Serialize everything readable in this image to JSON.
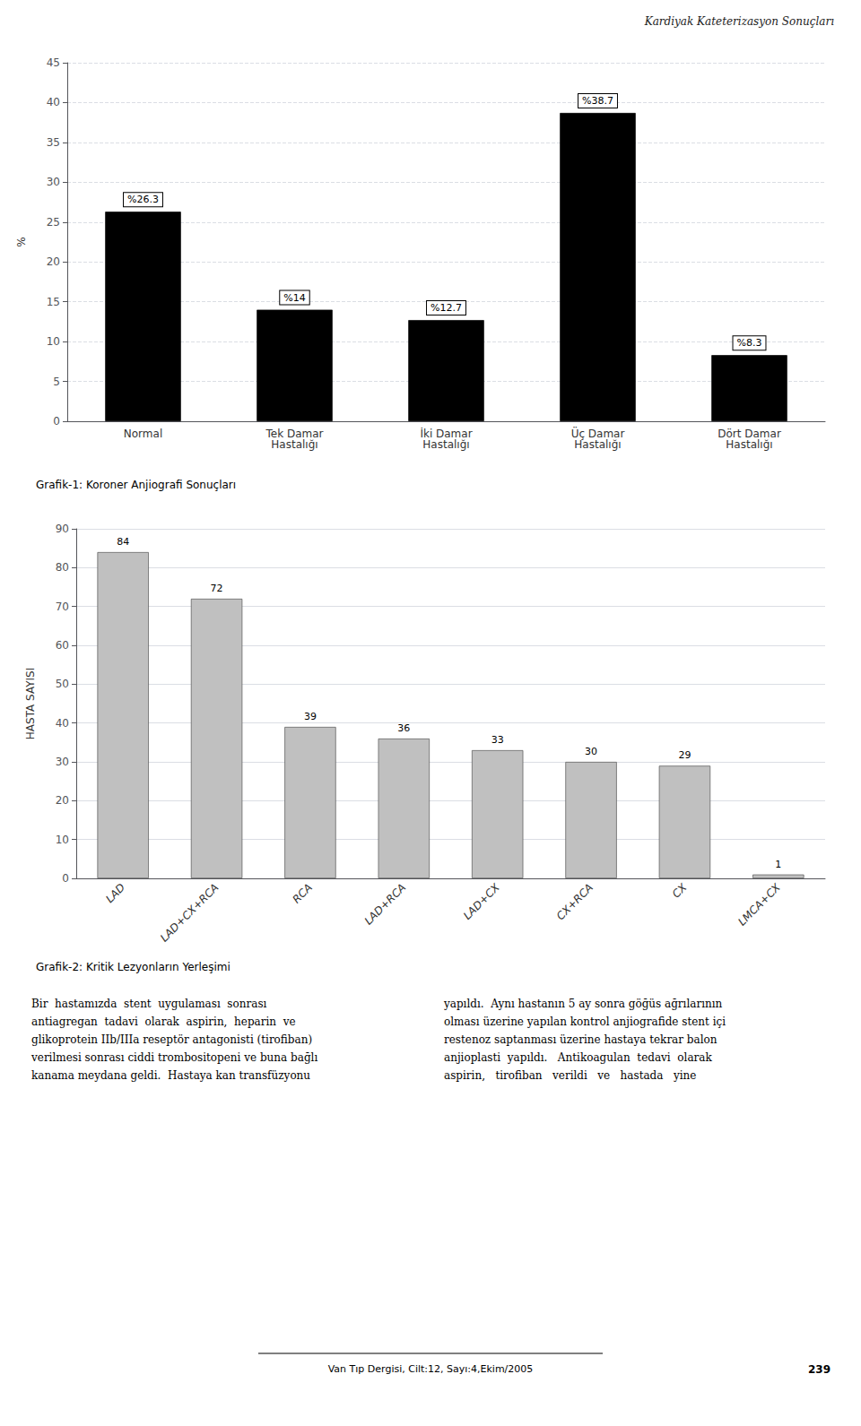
{
  "chart_data": [
    {
      "type": "bar",
      "title": "Grafik-1: Koroner Anjiografi Sonuçları",
      "ylabel": "%",
      "categories": [
        "Normal",
        "Tek Damar\nHastalığı",
        "İki Damar\nHastalığı",
        "Üç Damar\nHastalığı",
        "Dört Damar\nHastalığı"
      ],
      "values": [
        26.3,
        14.0,
        12.7,
        38.7,
        8.3
      ],
      "value_labels": [
        "%26.3",
        "%14",
        "%12.7",
        "%38.7",
        "%8.3"
      ],
      "data_labels": true,
      "color": "#000000",
      "ylim": [
        0,
        45
      ],
      "yticks": [
        0,
        5,
        10,
        15,
        20,
        25,
        30,
        35,
        40,
        45
      ],
      "grid": true
    },
    {
      "type": "bar",
      "title": "Grafik-2: Kritik Lezyonların Yerleşimi",
      "ylabel": "HASTA SAYISI",
      "categories": [
        "LAD",
        "LAD+CX+RCA",
        "RCA",
        "LAD+RCA",
        "LAD+CX",
        "CX+RCA",
        "CX",
        "LMCA+CX"
      ],
      "values": [
        84,
        72,
        39,
        36,
        33,
        30,
        29,
        1
      ],
      "data_labels": true,
      "color": "#c0c0c0",
      "ylim": [
        0,
        90
      ],
      "yticks": [
        0,
        10,
        20,
        30,
        40,
        50,
        60,
        70,
        80,
        90
      ],
      "grid": true
    }
  ],
  "annotations": [
    "Kardiyak Kateterizasyon Sonuçları",
    "Bir  hastamızda  stent  uygulaması  sonrası\nantiagregan  tadavi  olarak  aspirin,  heparin  ve\nglikoprotein IIb/IIIa reseptör antagonisti (tirofiban)\nverilmesi sonrası ciddi trombositopeni ve buna bağlı\nkanama meydana geldi.  Hastaya kan transfüzyonu",
    "yapıldı.  Aynı hastanın 5 ay sonra göğüs ağrılarının\nolması üzerine yapılan kontrol anjiografide stent içi\nrestenoz saptanması üzerine hastaya tekrar balon\nanjioplasti  yapıldı.   Antikoagulan  tedavi  olarak\naspirin,   tirofiban   verildi   ve   hastada   yine",
    "Van Tıp Dergisi, Cilt:12, Sayı:4,Ekim/2005",
    "239"
  ]
}
